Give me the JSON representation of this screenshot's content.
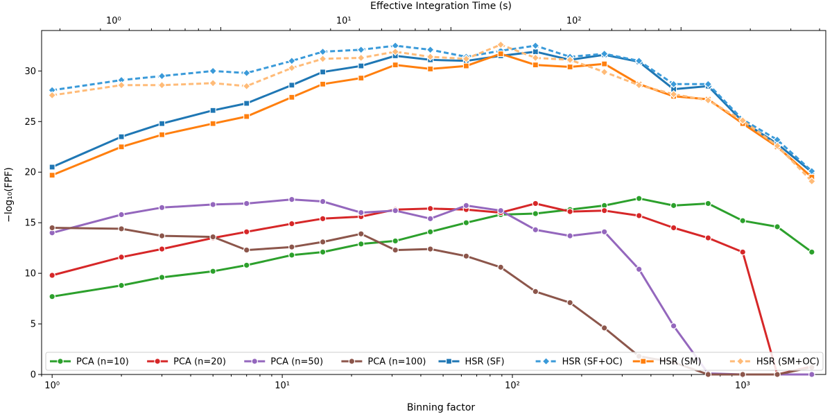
{
  "chart_data": {
    "type": "line",
    "xscale": "log",
    "xlim": [
      0.9,
      2300
    ],
    "ylim": [
      0,
      34
    ],
    "xlabel": "Binning factor",
    "ylabel": "−log₁₀(FPF)",
    "top_xlabel": "Effective Integration Time (s)",
    "yticks": [
      0,
      5,
      10,
      15,
      20,
      25,
      30
    ],
    "bottom_ticks": [
      {
        "value": 1,
        "label": "10⁰"
      },
      {
        "value": 10,
        "label": "10¹"
      },
      {
        "value": 100,
        "label": "10²"
      },
      {
        "value": 1000,
        "label": "10³"
      }
    ],
    "top_ticks": [
      {
        "value": 1.85,
        "label": "10⁰"
      },
      {
        "value": 18.5,
        "label": "10¹"
      },
      {
        "value": 185,
        "label": "10²"
      }
    ],
    "x": [
      1,
      2,
      3,
      5,
      7,
      11,
      15,
      22,
      31,
      44,
      63,
      89,
      126,
      178,
      251,
      355,
      502,
      709,
      1002,
      1416,
      2000
    ],
    "legend_position": "bottom",
    "series": [
      {
        "name": "PCA (n=10)",
        "color": "#2ca02c",
        "dash": "",
        "marker": "circle",
        "values": [
          7.7,
          8.8,
          9.6,
          10.2,
          10.8,
          11.8,
          12.1,
          12.9,
          13.2,
          14.1,
          15.0,
          15.8,
          15.9,
          16.3,
          16.7,
          17.4,
          16.7,
          16.9,
          15.2,
          14.6,
          12.1
        ]
      },
      {
        "name": "PCA (n=20)",
        "color": "#d62728",
        "dash": "",
        "marker": "circle",
        "values": [
          9.8,
          11.6,
          12.4,
          13.5,
          14.1,
          14.9,
          15.4,
          15.6,
          16.3,
          16.4,
          16.3,
          16.0,
          16.9,
          16.1,
          16.2,
          15.7,
          14.5,
          13.5,
          12.1,
          0.0,
          0.8
        ]
      },
      {
        "name": "PCA (n=50)",
        "color": "#9467bd",
        "dash": "",
        "marker": "circle",
        "values": [
          14.0,
          15.8,
          16.5,
          16.8,
          16.9,
          17.3,
          17.1,
          16.0,
          16.2,
          15.4,
          16.7,
          16.2,
          14.3,
          13.7,
          14.1,
          10.4,
          4.8,
          0.1,
          0.0,
          0.0,
          0.0
        ]
      },
      {
        "name": "PCA (n=100)",
        "color": "#8c564b",
        "dash": "",
        "marker": "circle",
        "values": [
          14.5,
          14.4,
          13.7,
          13.6,
          12.3,
          12.6,
          13.1,
          13.9,
          12.3,
          12.4,
          11.7,
          10.6,
          8.2,
          7.1,
          4.6,
          1.8,
          1.2,
          0.0,
          0.0,
          0.0,
          0.7
        ]
      },
      {
        "name": "HSR (SF)",
        "color": "#1f77b4",
        "dash": "",
        "marker": "square",
        "values": [
          20.5,
          23.5,
          24.8,
          26.1,
          26.8,
          28.6,
          29.9,
          30.5,
          31.5,
          31.1,
          31.0,
          31.5,
          31.9,
          31.1,
          31.6,
          30.9,
          28.2,
          28.5,
          25.0,
          22.8,
          20.0
        ]
      },
      {
        "name": "HSR (SF+OC)",
        "color": "#3a9ad9",
        "dash": "7,4",
        "marker": "diamond",
        "values": [
          28.1,
          29.1,
          29.5,
          30.0,
          29.8,
          31.0,
          31.9,
          32.1,
          32.5,
          32.1,
          31.4,
          32.0,
          32.5,
          31.4,
          31.7,
          31.0,
          28.7,
          28.7,
          25.2,
          23.2,
          20.1
        ]
      },
      {
        "name": "HSR (SM)",
        "color": "#ff7f0e",
        "dash": "",
        "marker": "square",
        "values": [
          19.7,
          22.5,
          23.7,
          24.8,
          25.5,
          27.4,
          28.7,
          29.3,
          30.6,
          30.2,
          30.5,
          31.7,
          30.6,
          30.4,
          30.7,
          28.7,
          27.5,
          27.2,
          24.8,
          22.5,
          19.5
        ]
      },
      {
        "name": "HSR (SM+OC)",
        "color": "#ffbb78",
        "dash": "7,4",
        "marker": "diamond",
        "values": [
          27.6,
          28.6,
          28.6,
          28.8,
          28.5,
          30.3,
          31.2,
          31.3,
          31.9,
          31.4,
          31.2,
          32.6,
          31.3,
          31.1,
          29.9,
          28.6,
          27.7,
          27.1,
          25.1,
          22.6,
          19.1
        ]
      }
    ]
  }
}
